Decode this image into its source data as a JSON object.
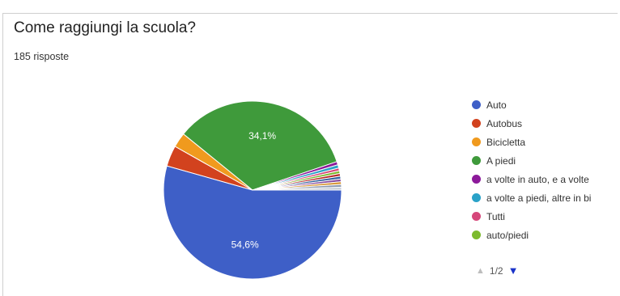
{
  "question": "Come raggiungi la scuola?",
  "responses": "185 risposte",
  "chart_data": {
    "type": "pie",
    "slices": [
      {
        "label": "Auto",
        "value": 54.6,
        "color": "#3e5fc7",
        "data_label": "54,6%"
      },
      {
        "label": "Autobus",
        "value": 3.8,
        "color": "#d2421e",
        "data_label": ""
      },
      {
        "label": "Bicicletta",
        "value": 2.7,
        "color": "#f09a1e",
        "data_label": ""
      },
      {
        "label": "A piedi",
        "value": 34.1,
        "color": "#3f9a3b",
        "data_label": "34,1%"
      },
      {
        "label": "a volte in auto, e a volte",
        "value": 0.6,
        "color": "#8c1a9a",
        "data_label": ""
      },
      {
        "label": "a volte a piedi, altre in bi",
        "value": 0.6,
        "color": "#2aa2c8",
        "data_label": ""
      },
      {
        "label": "Tutti",
        "value": 0.5,
        "color": "#d6477a",
        "data_label": ""
      },
      {
        "label": "auto/piedi",
        "value": 0.5,
        "color": "#7cba2d",
        "data_label": ""
      },
      {
        "label": "",
        "value": 0.5,
        "color": "#b62a2a",
        "data_label": ""
      },
      {
        "label": "",
        "value": 0.5,
        "color": "#2f5f9a",
        "data_label": ""
      },
      {
        "label": "",
        "value": 0.5,
        "color": "#8a4fa0",
        "data_label": ""
      },
      {
        "label": "",
        "value": 0.5,
        "color": "#d99a3a",
        "data_label": ""
      },
      {
        "label": "",
        "value": 0.5,
        "color": "#8f9bb0",
        "data_label": ""
      },
      {
        "label": "",
        "value": 0.5,
        "color": "#c9cfd8",
        "data_label": ""
      }
    ]
  },
  "legend_pager": {
    "page": "1/2",
    "prev_icon": "up-triangle-icon",
    "next_icon": "down-triangle-icon"
  }
}
